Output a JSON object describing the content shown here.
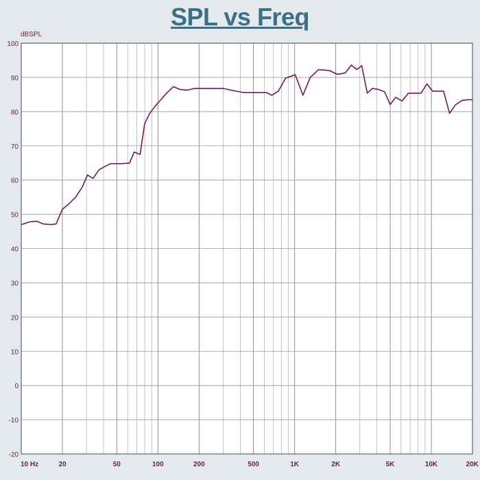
{
  "chart_data": {
    "type": "line",
    "title": "SPL vs Freq",
    "ylabel": "dBSPL",
    "xlabel": "",
    "xscale": "log",
    "xlim": [
      10,
      20000
    ],
    "ylim": [
      -20,
      100
    ],
    "grid": true,
    "line_color": "#6d1a57",
    "y_ticks": [
      {
        "value": 100,
        "label": "100"
      },
      {
        "value": 90,
        "label": "90"
      },
      {
        "value": 80,
        "label": "80"
      },
      {
        "value": 70,
        "label": "70"
      },
      {
        "value": 60,
        "label": "60"
      },
      {
        "value": 50,
        "label": "50"
      },
      {
        "value": 40,
        "label": "40"
      },
      {
        "value": 30,
        "label": "30"
      },
      {
        "value": 20,
        "label": "20"
      },
      {
        "value": 10,
        "label": "10"
      },
      {
        "value": 0,
        "label": "0"
      },
      {
        "value": -10,
        "label": "-10"
      },
      {
        "value": -20,
        "label": "-20"
      }
    ],
    "x_ticks": [
      {
        "value": 10,
        "label": "10  Hz"
      },
      {
        "value": 20,
        "label": "20"
      },
      {
        "value": 50,
        "label": "50"
      },
      {
        "value": 100,
        "label": "100"
      },
      {
        "value": 200,
        "label": "200"
      },
      {
        "value": 500,
        "label": "500"
      },
      {
        "value": 1000,
        "label": "1K"
      },
      {
        "value": 2000,
        "label": "2K"
      },
      {
        "value": 5000,
        "label": "5K"
      },
      {
        "value": 10000,
        "label": "10K"
      },
      {
        "value": 20000,
        "label": "20K"
      }
    ],
    "series": [
      {
        "x": [
          10,
          11.5,
          13,
          14.5,
          16.5,
          18,
          20,
          22.5,
          25,
          28,
          30.5,
          33.5,
          37,
          41,
          45,
          50,
          55,
          62,
          67,
          74,
          80,
          87,
          95,
          105,
          115,
          130,
          145,
          165,
          185,
          210,
          240,
          270,
          300,
          350,
          420,
          490,
          560,
          620,
          680,
          760,
          860,
          950,
          1010,
          1150,
          1300,
          1500,
          1800,
          2050,
          2350,
          2600,
          2850,
          3100,
          3400,
          3700,
          4100,
          4550,
          5000,
          5500,
          6100,
          6800,
          7600,
          8400,
          9300,
          10200,
          11200,
          12300,
          13600,
          15000,
          16800,
          18500,
          20000
        ],
        "y": [
          47,
          47.8,
          48,
          47.2,
          47,
          47.2,
          51.5,
          53.2,
          55,
          58,
          61.5,
          60.5,
          63,
          64,
          64.8,
          64.8,
          64.8,
          65,
          68.2,
          67.5,
          76.5,
          79.5,
          81.5,
          83.5,
          85.3,
          87.3,
          86.5,
          86.3,
          86.8,
          86.8,
          86.8,
          86.8,
          86.8,
          86.2,
          85.6,
          85.6,
          85.6,
          85.6,
          84.8,
          86,
          89.8,
          90.4,
          90.8,
          84.8,
          90,
          92.3,
          92,
          90.9,
          91.3,
          93.6,
          92.3,
          93.4,
          85.4,
          86.8,
          86.5,
          85.8,
          82.1,
          84.2,
          83.1,
          85.4,
          85.4,
          85.4,
          88.1,
          86,
          86,
          86,
          79.5,
          82,
          83.3,
          83.5,
          83.5
        ]
      }
    ]
  }
}
